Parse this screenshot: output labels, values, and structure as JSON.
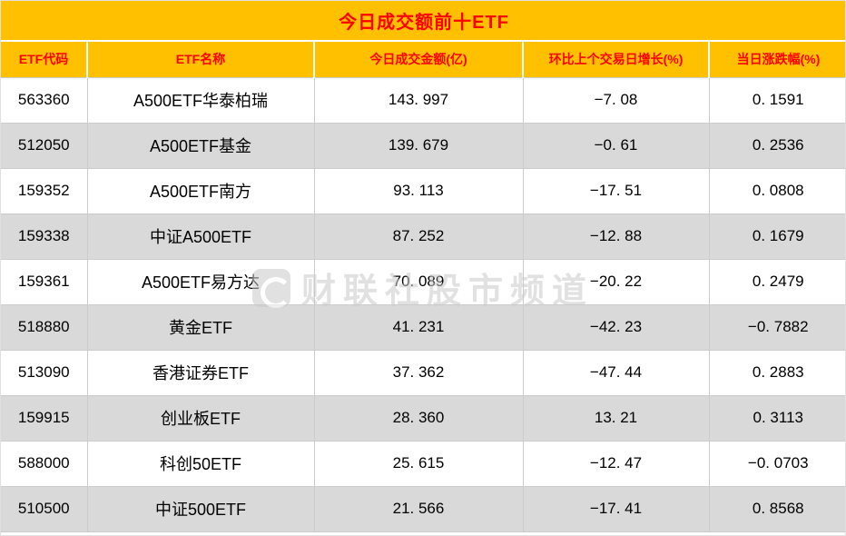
{
  "title": "今日成交额前十ETF",
  "watermark": "财联社股市频道",
  "colors": {
    "header_bg": "#FFC000",
    "header_text": "#FF0000",
    "row_alt_bg": "#D9D9D9",
    "body_text": "#000000"
  },
  "chart_data": {
    "type": "table",
    "title": "今日成交额前十ETF",
    "columns": [
      "ETF代码",
      "ETF名称",
      "今日成交金额(亿)",
      "环比上个交易日增长(%)",
      "当日涨跌幅(%)"
    ],
    "rows": [
      [
        "563360",
        "A500ETF华泰柏瑞",
        "143. 997",
        "−7. 08",
        "0. 1591"
      ],
      [
        "512050",
        "A500ETF基金",
        "139. 679",
        "−0. 61",
        "0. 2536"
      ],
      [
        "159352",
        "A500ETF南方",
        "93. 113",
        "−17. 51",
        "0. 0808"
      ],
      [
        "159338",
        "中证A500ETF",
        "87. 252",
        "−12. 88",
        "0. 1679"
      ],
      [
        "159361",
        "A500ETF易方达",
        "70. 089",
        "−20. 22",
        "0. 2479"
      ],
      [
        "518880",
        "黄金ETF",
        "41. 231",
        "−42. 23",
        "−0. 7882"
      ],
      [
        "513090",
        "香港证券ETF",
        "37. 362",
        "−47. 44",
        "0. 2883"
      ],
      [
        "159915",
        "创业板ETF",
        "28. 360",
        "13. 21",
        "0. 3113"
      ],
      [
        "588000",
        "科创50ETF",
        "25. 615",
        "−12. 47",
        "−0. 0703"
      ],
      [
        "510500",
        "中证500ETF",
        "21. 566",
        "−17. 41",
        "0. 8568"
      ]
    ]
  }
}
